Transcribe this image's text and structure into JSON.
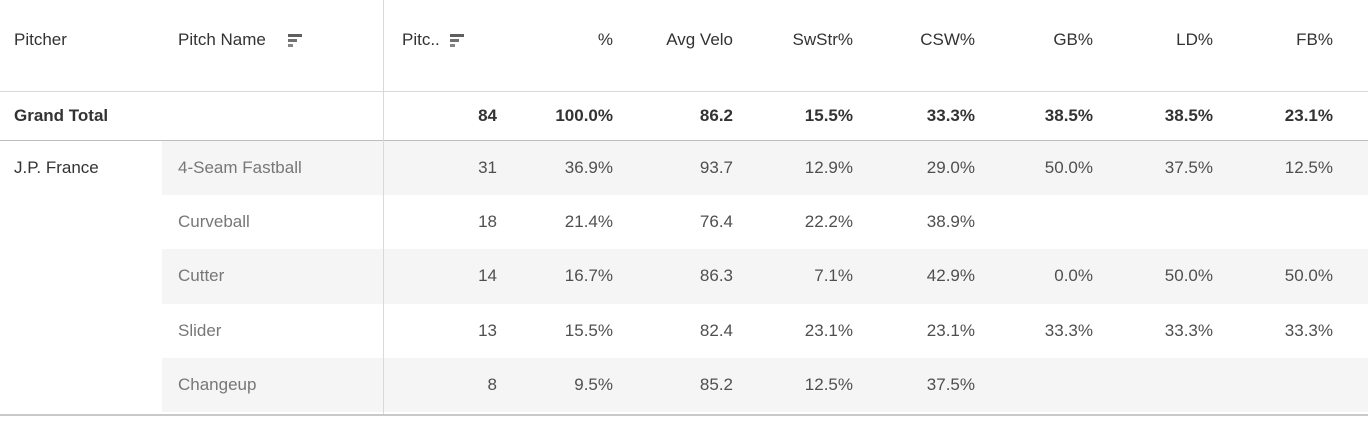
{
  "chart_data": {
    "type": "table",
    "header": {
      "pitcher": "Pitcher",
      "pitch_name": "Pitch Name",
      "pitches": "Pitc..",
      "pct": "%",
      "avg_velo": "Avg Velo",
      "swstr_pct": "SwStr%",
      "csw_pct": "CSW%",
      "gb_pct": "GB%",
      "ld_pct": "LD%",
      "fb_pct": "FB%"
    },
    "icons": {
      "pitch_name_sort": "sort-descending-icon",
      "pitches_sort": "sort-descending-icon"
    },
    "grand_total": {
      "label": "Grand Total",
      "pitches": "84",
      "pct": "100.0%",
      "avg_velo": "86.2",
      "swstr_pct": "15.5%",
      "csw_pct": "33.3%",
      "gb_pct": "38.5%",
      "ld_pct": "38.5%",
      "fb_pct": "23.1%"
    },
    "group": {
      "pitcher": "J.P. France"
    },
    "rows": [
      {
        "pitch_name": "4-Seam Fastball",
        "pitches": "31",
        "pct": "36.9%",
        "avg_velo": "93.7",
        "swstr_pct": "12.9%",
        "csw_pct": "29.0%",
        "gb_pct": "50.0%",
        "ld_pct": "37.5%",
        "fb_pct": "12.5%",
        "banded": true
      },
      {
        "pitch_name": "Curveball",
        "pitches": "18",
        "pct": "21.4%",
        "avg_velo": "76.4",
        "swstr_pct": "22.2%",
        "csw_pct": "38.9%",
        "gb_pct": "",
        "ld_pct": "",
        "fb_pct": "",
        "banded": false
      },
      {
        "pitch_name": "Cutter",
        "pitches": "14",
        "pct": "16.7%",
        "avg_velo": "86.3",
        "swstr_pct": "7.1%",
        "csw_pct": "42.9%",
        "gb_pct": "0.0%",
        "ld_pct": "50.0%",
        "fb_pct": "50.0%",
        "banded": true
      },
      {
        "pitch_name": "Slider",
        "pitches": "13",
        "pct": "15.5%",
        "avg_velo": "82.4",
        "swstr_pct": "23.1%",
        "csw_pct": "23.1%",
        "gb_pct": "33.3%",
        "ld_pct": "33.3%",
        "fb_pct": "33.3%",
        "banded": false
      },
      {
        "pitch_name": "Changeup",
        "pitches": "8",
        "pct": "9.5%",
        "avg_velo": "85.2",
        "swstr_pct": "12.5%",
        "csw_pct": "37.5%",
        "gb_pct": "",
        "ld_pct": "",
        "fb_pct": "",
        "banded": true
      }
    ],
    "colors": {
      "band": "#f5f5f5",
      "border_light": "#d9d9d9",
      "border_dark": "#bdbdbd",
      "header_text": "#333333",
      "pitch_text": "#777777",
      "value_text": "#4f4f4f",
      "total_text": "#333333",
      "bg": "#ffffff"
    }
  }
}
